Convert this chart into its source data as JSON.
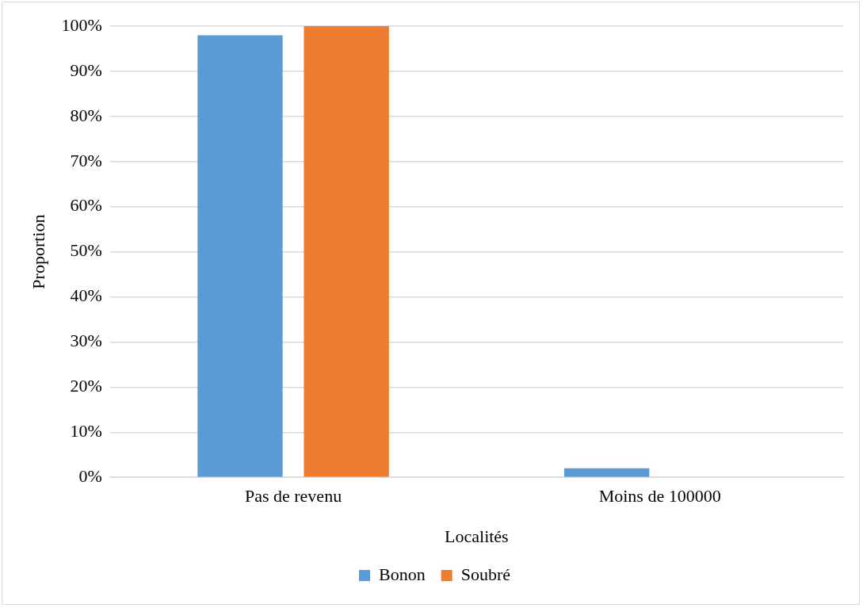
{
  "chart_data": {
    "type": "bar",
    "xlabel": "Localités",
    "ylabel": "Proportion",
    "categories": [
      "Pas de revenu",
      "Moins de 100000"
    ],
    "series": [
      {
        "name": "Bonon",
        "color": "#5b9bd5",
        "values": [
          98,
          2
        ]
      },
      {
        "name": "Soubré",
        "color": "#ed7d31",
        "values": [
          100,
          0
        ]
      }
    ],
    "ylim": [
      0,
      100
    ],
    "yticks": [
      {
        "value": 0,
        "label": "0%"
      },
      {
        "value": 10,
        "label": "10%"
      },
      {
        "value": 20,
        "label": "20%"
      },
      {
        "value": 30,
        "label": "30%"
      },
      {
        "value": 40,
        "label": "40%"
      },
      {
        "value": 50,
        "label": "50%"
      },
      {
        "value": 60,
        "label": "60%"
      },
      {
        "value": 70,
        "label": "70%"
      },
      {
        "value": 80,
        "label": "80%"
      },
      {
        "value": 90,
        "label": "90%"
      },
      {
        "value": 100,
        "label": "100%"
      }
    ],
    "grid": "y",
    "legend": "bottom"
  }
}
